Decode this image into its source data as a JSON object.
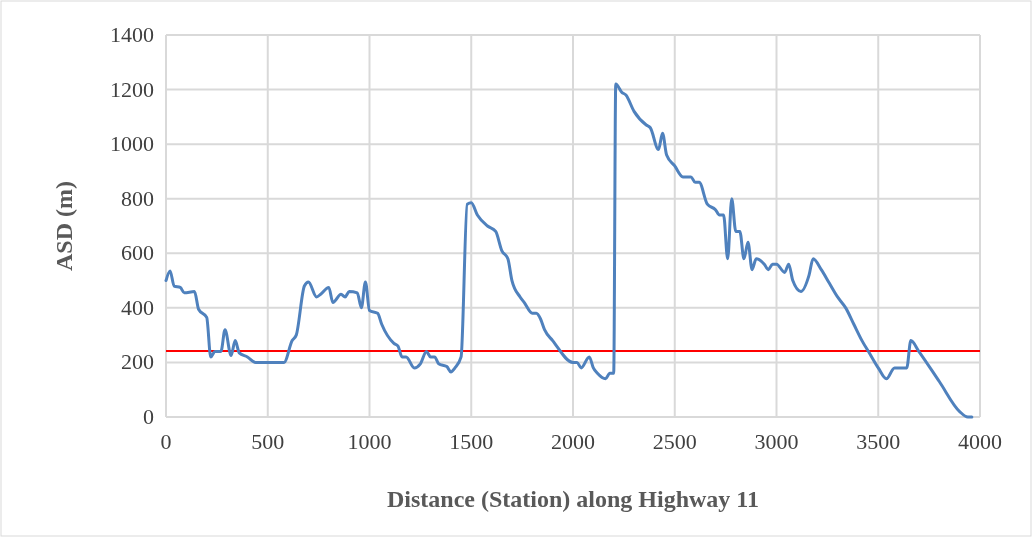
{
  "chart_data": {
    "type": "line",
    "xlabel": "Distance (Station) along Highway 11",
    "ylabel": "ASD (m)",
    "x": [
      0,
      20,
      40,
      70,
      90,
      140,
      160,
      200,
      220,
      240,
      270,
      290,
      320,
      340,
      360,
      400,
      440,
      580,
      620,
      640,
      680,
      700,
      740,
      760,
      800,
      820,
      860,
      880,
      900,
      940,
      960,
      980,
      1000,
      1040,
      1060,
      1120,
      1140,
      1160,
      1180,
      1220,
      1250,
      1280,
      1300,
      1320,
      1340,
      1380,
      1400,
      1420,
      1450,
      1480,
      1500,
      1530,
      1580,
      1620,
      1650,
      1680,
      1700,
      1740,
      1760,
      1800,
      1820,
      1840,
      1860,
      1900,
      2000,
      2020,
      2040,
      2080,
      2100,
      2120,
      2160,
      2180,
      2200,
      2210,
      2240,
      2260,
      2300,
      2360,
      2380,
      2420,
      2440,
      2460,
      2500,
      2540,
      2580,
      2600,
      2620,
      2660,
      2700,
      2720,
      2740,
      2760,
      2780,
      2800,
      2820,
      2840,
      2860,
      2880,
      2900,
      2940,
      2960,
      2980,
      3000,
      3040,
      3060,
      3080,
      3120,
      3160,
      3180,
      3220,
      3260,
      3300,
      3340,
      3380,
      3420,
      3460,
      3500,
      3540,
      3580,
      3640,
      3660,
      3700,
      3800,
      3900,
      3940,
      3960
    ],
    "series": [
      {
        "color": "#4f81bd",
        "values": [
          500,
          535,
          480,
          475,
          455,
          460,
          395,
          365,
          220,
          240,
          240,
          320,
          225,
          280,
          235,
          220,
          200,
          200,
          280,
          300,
          480,
          495,
          440,
          450,
          475,
          420,
          450,
          440,
          460,
          455,
          400,
          495,
          390,
          380,
          340,
          270,
          260,
          220,
          220,
          180,
          195,
          240,
          220,
          220,
          195,
          185,
          165,
          180,
          220,
          780,
          785,
          740,
          700,
          680,
          610,
          580,
          500,
          440,
          420,
          380,
          380,
          360,
          320,
          280,
          200,
          200,
          180,
          220,
          180,
          160,
          140,
          160,
          160,
          1220,
          1190,
          1180,
          1120,
          1070,
          1060,
          980,
          1040,
          960,
          920,
          880,
          880,
          860,
          860,
          780,
          760,
          740,
          740,
          580,
          800,
          680,
          680,
          580,
          640,
          540,
          580,
          560,
          540,
          560,
          560,
          530,
          560,
          500,
          460,
          520,
          580,
          540,
          490,
          440,
          400,
          340,
          280,
          230,
          180,
          140,
          180,
          180,
          280,
          240,
          130,
          20,
          0,
          0
        ]
      }
    ],
    "xlim": [
      0,
      4000
    ],
    "xticks": [
      0,
      500,
      1000,
      1500,
      2000,
      2500,
      3000,
      3500,
      4000
    ],
    "ylim": [
      0,
      1400
    ],
    "yticks": [
      0,
      200,
      400,
      600,
      800,
      1000,
      1200,
      1400
    ],
    "grid": true,
    "marker": "none",
    "line_style": "solid",
    "ref_lines": [
      {
        "axis": "y",
        "value": 242,
        "color": "#ff0000"
      }
    ]
  }
}
